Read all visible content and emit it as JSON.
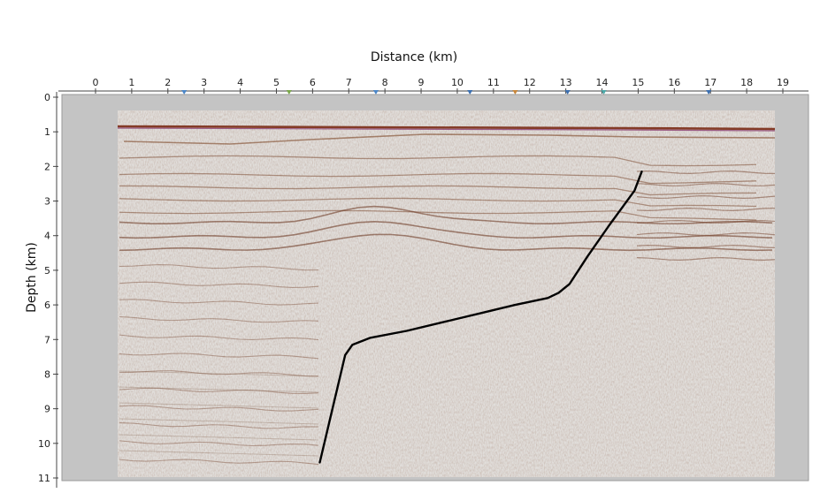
{
  "chart_data": {
    "type": "line",
    "title": "",
    "xlabel": "Distance (km)",
    "ylabel": "Depth (km)",
    "x_ticks": [
      "0",
      "1",
      "2",
      "3",
      "4",
      "5",
      "6",
      "7",
      "8",
      "9",
      "10",
      "11",
      "12",
      "13",
      "14",
      "15",
      "16",
      "17",
      "18",
      "19"
    ],
    "y_ticks": [
      "0",
      "1",
      "2",
      "3",
      "4",
      "5",
      "6",
      "7",
      "8",
      "9",
      "10",
      "11"
    ],
    "xlim": [
      0,
      19
    ],
    "ylim": [
      0,
      11
    ],
    "y_inverted": true,
    "x_axis_position": "top",
    "grid": false,
    "background": "seismic section (grey, wiggle reflectors)",
    "series": [
      {
        "color": "#000000",
        "x": [
          6.2,
          6.9,
          7.1,
          7.6,
          8.6,
          9.6,
          10.6,
          11.6,
          12.5,
          12.8,
          13.1,
          13.6,
          14.2,
          14.9,
          15.1
        ],
        "y": [
          10.55,
          7.45,
          7.15,
          6.95,
          6.75,
          6.5,
          6.25,
          6.0,
          5.8,
          5.65,
          5.4,
          4.6,
          3.7,
          2.7,
          2.15
        ]
      }
    ],
    "markers": [
      {
        "x": 2.45,
        "color": "#4a86c8"
      },
      {
        "x": 5.35,
        "color": "#7aa84a"
      },
      {
        "x": 7.75,
        "color": "#4a86c8"
      },
      {
        "x": 10.35,
        "color": "#3b6fb0"
      },
      {
        "x": 11.6,
        "color": "#c8863a"
      },
      {
        "x": 13.05,
        "color": "#3b6fb0"
      },
      {
        "x": 14.05,
        "color": "#4aa8a8"
      },
      {
        "x": 16.95,
        "color": "#3b6fb0"
      }
    ]
  }
}
